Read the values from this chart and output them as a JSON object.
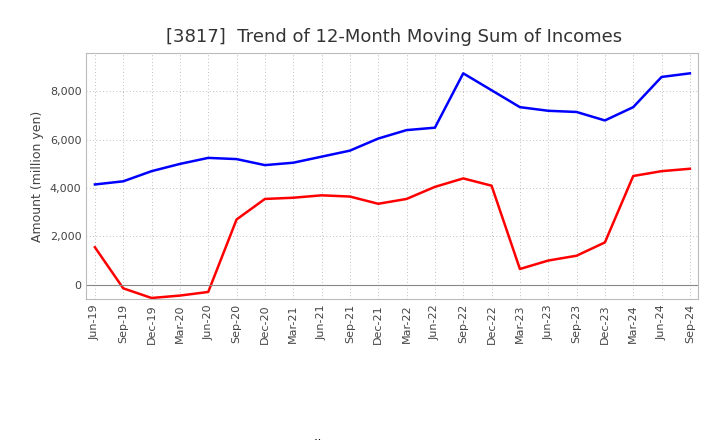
{
  "title": "[3817]  Trend of 12-Month Moving Sum of Incomes",
  "ylabel": "Amount (million yen)",
  "x_labels": [
    "Jun-19",
    "Sep-19",
    "Dec-19",
    "Mar-20",
    "Jun-20",
    "Sep-20",
    "Dec-20",
    "Mar-21",
    "Jun-21",
    "Sep-21",
    "Dec-21",
    "Mar-22",
    "Jun-22",
    "Sep-22",
    "Dec-22",
    "Mar-23",
    "Jun-23",
    "Sep-23",
    "Dec-23",
    "Mar-24",
    "Jun-24",
    "Sep-24"
  ],
  "ordinary_income": [
    4150,
    4280,
    4700,
    5000,
    5250,
    5200,
    4950,
    5050,
    5300,
    5550,
    6050,
    6400,
    6500,
    8750,
    8050,
    7350,
    7200,
    7150,
    6800,
    7350,
    8600,
    8750
  ],
  "net_income": [
    1550,
    -150,
    -550,
    -450,
    -300,
    2700,
    3550,
    3600,
    3700,
    3650,
    3350,
    3550,
    4050,
    4400,
    4100,
    650,
    1000,
    1200,
    1750,
    4500,
    4700,
    4800
  ],
  "ordinary_color": "#0000FF",
  "net_color": "#FF0000",
  "ylim_min": -600,
  "ylim_max": 9600,
  "yticks": [
    0,
    2000,
    4000,
    6000,
    8000
  ],
  "background_color": "#FFFFFF",
  "grid_color": "#AAAAAA",
  "title_fontsize": 13,
  "title_color": "#333333",
  "axis_label_fontsize": 9,
  "tick_fontsize": 8,
  "tick_color": "#444444",
  "legend_fontsize": 9,
  "linewidth": 1.8
}
